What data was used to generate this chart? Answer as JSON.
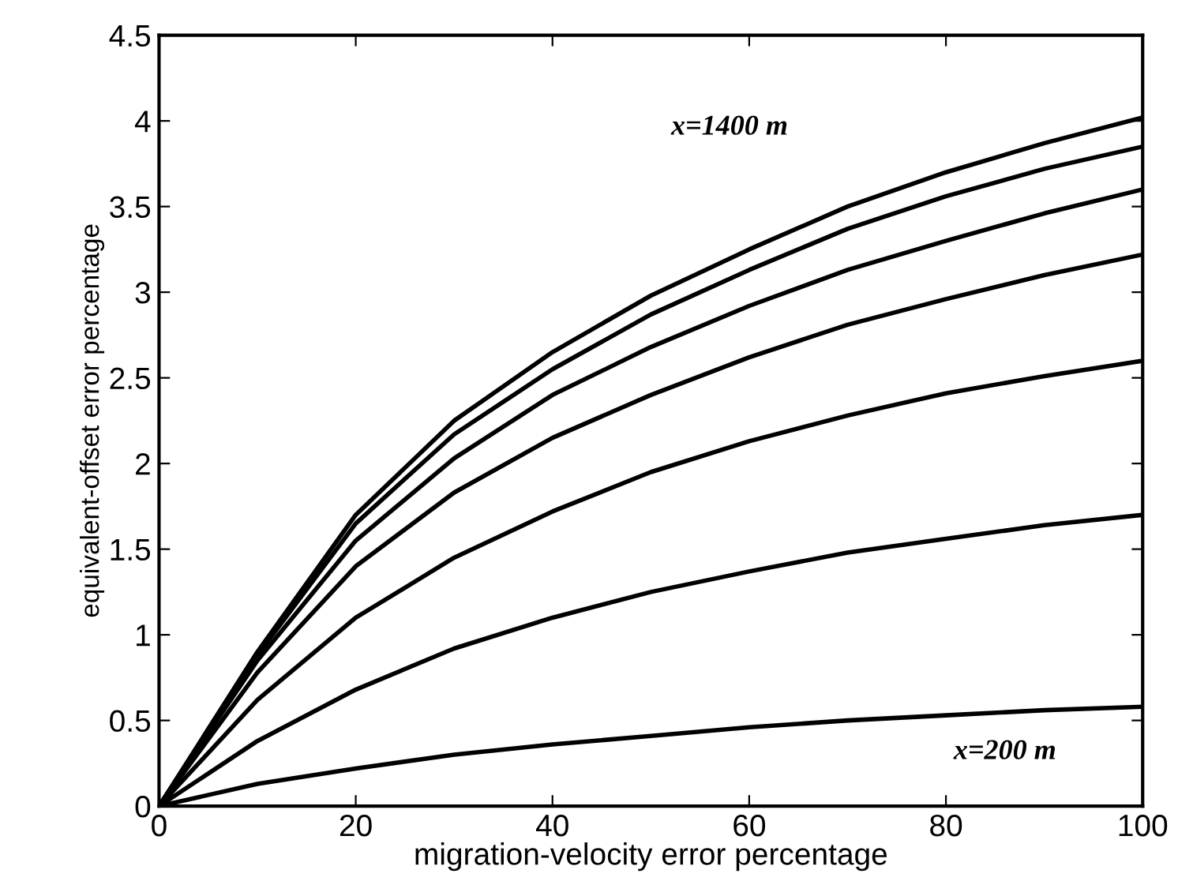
{
  "chart_data": {
    "type": "line",
    "xlabel": "migration-velocity error percentage",
    "ylabel": "equivalent-offset error percentage",
    "x": [
      0,
      10,
      20,
      30,
      40,
      50,
      60,
      70,
      80,
      90,
      100
    ],
    "series": [
      {
        "color": "#000000",
        "values": [
          0,
          0.9,
          1.7,
          2.25,
          2.65,
          2.98,
          3.25,
          3.5,
          3.7,
          3.87,
          4.02
        ]
      },
      {
        "color": "#000000",
        "values": [
          0,
          0.88,
          1.65,
          2.17,
          2.55,
          2.87,
          3.13,
          3.37,
          3.56,
          3.72,
          3.85
        ]
      },
      {
        "color": "#000000",
        "values": [
          0,
          0.85,
          1.55,
          2.03,
          2.4,
          2.68,
          2.92,
          3.13,
          3.3,
          3.46,
          3.6
        ]
      },
      {
        "color": "#000000",
        "values": [
          0,
          0.78,
          1.4,
          1.83,
          2.15,
          2.4,
          2.62,
          2.81,
          2.96,
          3.1,
          3.22
        ]
      },
      {
        "color": "#000000",
        "values": [
          0,
          0.62,
          1.1,
          1.45,
          1.72,
          1.95,
          2.13,
          2.28,
          2.41,
          2.51,
          2.6
        ]
      },
      {
        "color": "#000000",
        "values": [
          0,
          0.38,
          0.68,
          0.92,
          1.1,
          1.25,
          1.37,
          1.48,
          1.56,
          1.64,
          1.7
        ]
      },
      {
        "color": "#000000",
        "values": [
          0,
          0.13,
          0.22,
          0.3,
          0.36,
          0.41,
          0.46,
          0.5,
          0.53,
          0.56,
          0.58
        ]
      }
    ],
    "annotations": [
      "x=1400 m",
      "x=200 m"
    ],
    "xlim": [
      0,
      100
    ],
    "xticks": [
      0,
      20,
      40,
      60,
      80,
      100
    ],
    "ylim": [
      0,
      4.5
    ],
    "yticks": [
      0,
      0.5,
      1,
      1.5,
      2,
      2.5,
      3,
      3.5,
      4,
      4.5
    ],
    "grid": false,
    "legend": false,
    "marker": "none",
    "line_style": "solid"
  }
}
